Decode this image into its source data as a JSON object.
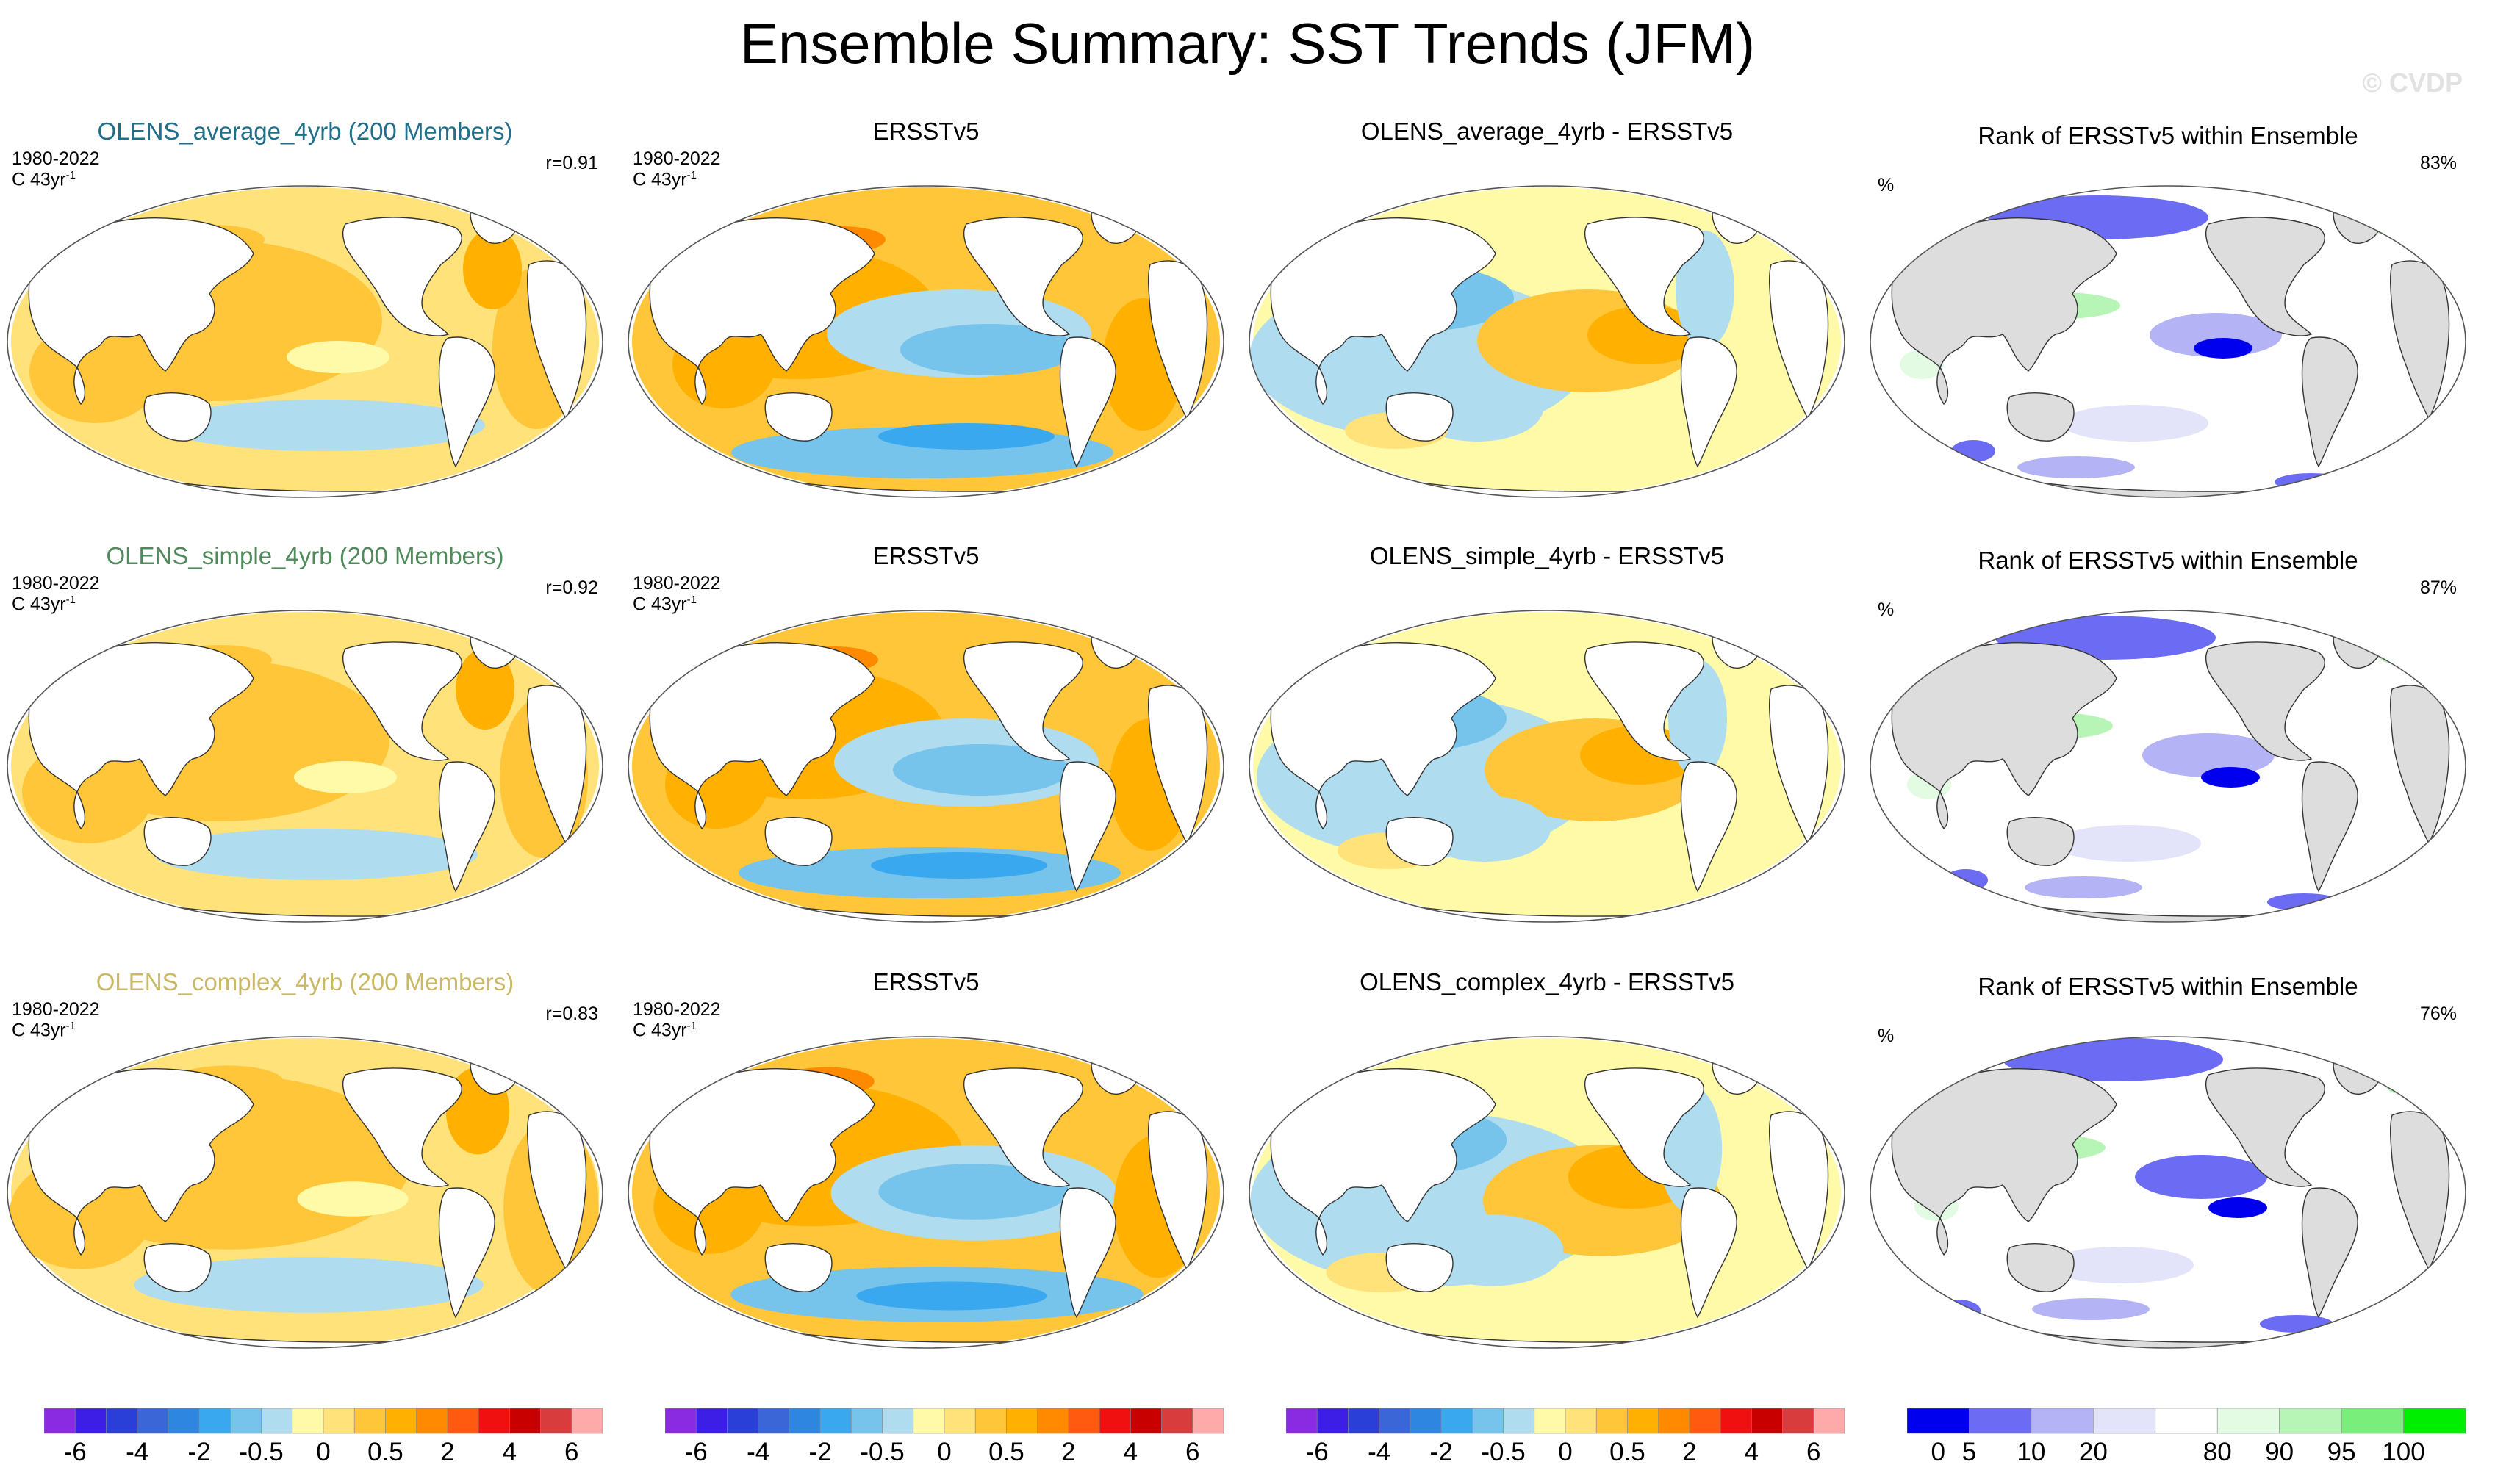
{
  "title": "Ensemble Summary: SST Trends (JFM)",
  "watermark": "© CVDP",
  "rows": [
    {
      "model_title": "OLENS_average_4yrb (200 Members)",
      "model_color": "#1f6f8b",
      "years": "1980-2022",
      "units_prefix": "C 43yr",
      "units_exp": "-1",
      "corr": "r=0.91",
      "obs_title": "ERSSTv5",
      "diff_title": "OLENS_average_4yrb - ERSSTv5",
      "rank_title": "Rank of ERSSTv5 within Ensemble",
      "rank_units": "%",
      "rank_value": "83%"
    },
    {
      "model_title": "OLENS_simple_4yrb (200 Members)",
      "model_color": "#4f8a5b",
      "years": "1980-2022",
      "units_prefix": "C 43yr",
      "units_exp": "-1",
      "corr": "r=0.92",
      "obs_title": "ERSSTv5",
      "diff_title": "OLENS_simple_4yrb - ERSSTv5",
      "rank_title": "Rank of ERSSTv5 within Ensemble",
      "rank_units": "%",
      "rank_value": "87%"
    },
    {
      "model_title": "OLENS_complex_4yrb (200 Members)",
      "model_color": "#c9b864",
      "years": "1980-2022",
      "units_prefix": "C 43yr",
      "units_exp": "-1",
      "corr": "r=0.83",
      "obs_title": "ERSSTv5",
      "diff_title": "OLENS_complex_4yrb - ERSSTv5",
      "rank_title": "Rank of ERSSTv5 within Ensemble",
      "rank_units": "%",
      "rank_value": "76%"
    }
  ],
  "colorbars": {
    "sst": {
      "colors": [
        "#8a2be2",
        "#3c1ee6",
        "#2a3fd8",
        "#3a66d8",
        "#2f86e0",
        "#3aa8ee",
        "#76c3ec",
        "#b0dcf0",
        "#fffaa8",
        "#ffe27a",
        "#ffc63a",
        "#ffb000",
        "#ff8a00",
        "#ff5a10",
        "#f01010",
        "#c80000",
        "#d83c3c",
        "#ffaaaa"
      ],
      "tick_labels": [
        "-6",
        "-4",
        "-2",
        "-0.5",
        "0",
        "0.5",
        "2",
        "4",
        "6"
      ],
      "tick_boundaries": [
        1,
        3,
        5,
        7,
        9,
        11,
        13,
        15,
        17
      ]
    },
    "rank": {
      "colors": [
        "#0000ee",
        "#6b6bf4",
        "#b3b3f6",
        "#e3e3fa",
        "#ffffff",
        "#e2fbe2",
        "#b7f5b7",
        "#7aee7a",
        "#00ee00"
      ],
      "tick_labels": [
        "0",
        "5",
        "10",
        "20",
        "80",
        "90",
        "95",
        "100"
      ],
      "tick_boundaries": [
        0.5,
        1,
        2,
        3,
        5,
        6,
        7,
        8
      ]
    }
  },
  "chart_data": [
    {
      "type": "heatmap",
      "title": "OLENS_average_4yrb (200 Members)",
      "period": "1980-2022",
      "units": "C 43yr-1",
      "pattern_correlation": 0.91,
      "colorbar_levels": [
        -6,
        -4,
        -2,
        -0.5,
        0,
        0.5,
        2,
        4,
        6
      ]
    },
    {
      "type": "heatmap",
      "title": "ERSSTv5",
      "period": "1980-2022",
      "units": "C 43yr-1",
      "colorbar_levels": [
        -6,
        -4,
        -2,
        -0.5,
        0,
        0.5,
        2,
        4,
        6
      ]
    },
    {
      "type": "heatmap",
      "title": "OLENS_average_4yrb - ERSSTv5",
      "colorbar_levels": [
        -6,
        -4,
        -2,
        -0.5,
        0,
        0.5,
        2,
        4,
        6
      ]
    },
    {
      "type": "heatmap",
      "title": "Rank of ERSSTv5 within Ensemble",
      "units": "%",
      "area_in_range": "83%",
      "colorbar_levels": [
        0,
        5,
        10,
        20,
        80,
        90,
        95,
        100
      ]
    },
    {
      "type": "heatmap",
      "title": "OLENS_simple_4yrb (200 Members)",
      "period": "1980-2022",
      "units": "C 43yr-1",
      "pattern_correlation": 0.92
    },
    {
      "type": "heatmap",
      "title": "ERSSTv5",
      "period": "1980-2022",
      "units": "C 43yr-1"
    },
    {
      "type": "heatmap",
      "title": "OLENS_simple_4yrb - ERSSTv5"
    },
    {
      "type": "heatmap",
      "title": "Rank of ERSSTv5 within Ensemble",
      "units": "%",
      "area_in_range": "87%"
    },
    {
      "type": "heatmap",
      "title": "OLENS_complex_4yrb (200 Members)",
      "period": "1980-2022",
      "units": "C 43yr-1",
      "pattern_correlation": 0.83
    },
    {
      "type": "heatmap",
      "title": "ERSSTv5",
      "period": "1980-2022",
      "units": "C 43yr-1"
    },
    {
      "type": "heatmap",
      "title": "OLENS_complex_4yrb - ERSSTv5"
    },
    {
      "type": "heatmap",
      "title": "Rank of ERSSTv5 within Ensemble",
      "units": "%",
      "area_in_range": "76%"
    }
  ]
}
